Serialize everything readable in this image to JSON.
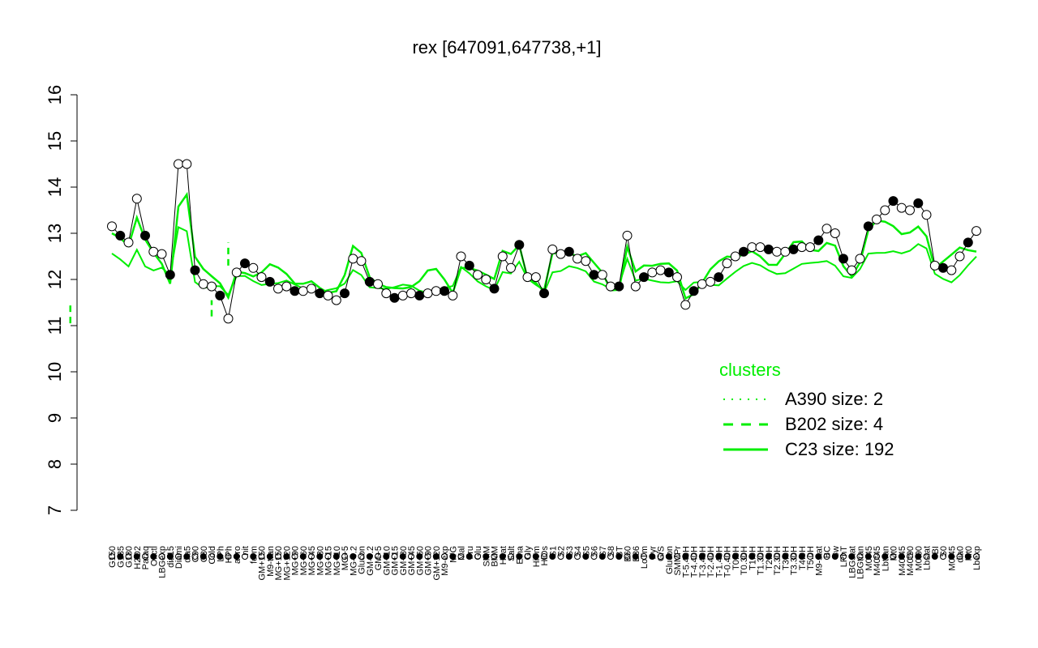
{
  "chart_data": {
    "type": "line",
    "title": "rex [647091,647738,+1]",
    "xlabel": "",
    "ylabel": "",
    "ylim": [
      7,
      16
    ],
    "yticks": [
      7,
      8,
      9,
      10,
      11,
      12,
      13,
      14,
      15,
      16
    ],
    "line_color": "#00ee00",
    "point_fill_colors": [
      "#ffffff",
      "#000000"
    ],
    "categories": [
      "G150",
      "G135",
      "G180",
      "H2O2",
      "Paraq",
      "Oxctl",
      "LBGexp",
      "dia15",
      "Diami",
      "dia5",
      "C90",
      "C30",
      "Cold",
      "LPh",
      "HPh",
      "aero",
      "nit",
      "ferm",
      "GM+150",
      "M9-tran",
      "MG+150",
      "MG+120",
      "MG+90",
      "MG+60",
      "MG+45",
      "MG+30",
      "MG+15",
      "MG+10",
      "MG+5",
      "MG-0.2",
      "Glucon",
      "GM-0.2",
      "GM+5",
      "GM+10",
      "GM+15",
      "GM+30",
      "GM+45",
      "GM+60",
      "GM+90",
      "GM+120",
      "M9-exp",
      "M/G",
      "Mal",
      "Fru",
      "Glu",
      "SMM",
      "BMM",
      "Heat",
      "Salt",
      "Etha",
      "Gly",
      "HiTm",
      "HiOs",
      "S1",
      "S2",
      "S3",
      "S4",
      "S5",
      "S6",
      "S7",
      "S8",
      "BT",
      "B60",
      "B36",
      "LoTm",
      "Pyr",
      "G/S",
      "Glucon",
      "SMMPr",
      "T-5.40H",
      "T-4.40H",
      "T-3.40H",
      "T-2.40H",
      "T-1.40H",
      "T-0.40H",
      "T0.0H",
      "T0.30H",
      "T1.0H",
      "T1.30H",
      "T2.0H",
      "T2.30H",
      "T3.0H",
      "T3.30H",
      "T4.0H",
      "T5.0H",
      "M9-stat",
      "BC",
      "Sw",
      "LPhT",
      "LBGstat",
      "LBGtran",
      "M0t45",
      "M40t45",
      "Lbtran",
      "Mt0",
      "M40t45",
      "M40t90",
      "M0t90",
      "Lbstat",
      "BI",
      "S0",
      "M0t45",
      "dia0",
      "Mt0",
      "Lbexp"
    ],
    "x_tick_labels_shown": [
      "G150",
      "G135",
      "G180",
      "H2O2",
      "Paraq",
      "Oxctl",
      "LBGexp",
      "dia15",
      "Diami",
      "dia5",
      "C90",
      "C30",
      "Cold",
      "LPh",
      "HPh",
      "aero",
      "nit",
      "ferm",
      "GM+150",
      "M9-tran",
      "MG+150",
      "MG+120",
      "MG+90",
      "MG+60",
      "MG+45",
      "MG+30",
      "MG+15",
      "MG+10",
      "MG+5",
      "MG-0.2",
      "Glucon",
      "GM-0.2",
      "GM+5",
      "GM+10",
      "GM+15",
      "GM+30",
      "GM+45",
      "GM+60",
      "GM+90",
      "GM+120",
      "M9-exp",
      "M/G",
      "Mal",
      "Fru",
      "Glu",
      "SMM",
      "BMM",
      "Heat",
      "Salt",
      "Etha",
      "Gly",
      "HiTm",
      "HiOs",
      "S1",
      "S2",
      "S3",
      "S4",
      "S5",
      "S6",
      "S7",
      "S8",
      "BT",
      "B60",
      "B36",
      "LoTm",
      "Pyr",
      "G/S",
      "Glucon",
      "SMMPr",
      "T-5.40H",
      "T-4.40H",
      "T-3.40H",
      "T-2.40H",
      "T-1.40H",
      "T-0.40H",
      "T0.0H",
      "T0.30H",
      "T1.0H",
      "T1.30H",
      "T2.0H",
      "T2.30H",
      "T3.0H",
      "T3.30H",
      "T4.0H",
      "T5.0H",
      "M9-stat",
      "BC",
      "Sw",
      "LPhT",
      "LBGstat",
      "LBGtran",
      "M0t45",
      "M40t45",
      "Lbtran",
      "Mt0",
      "M40t45",
      "M40t90",
      "M0t90",
      "Lbstat",
      "BI",
      "S0",
      "M0t45",
      "dia0",
      "Mt0",
      "Lbexp"
    ],
    "series": [
      {
        "values": [
          13.15,
          12.95,
          12.8,
          13.75,
          12.95,
          12.6,
          12.55,
          12.1,
          14.5,
          14.5,
          12.2,
          11.9,
          11.85,
          11.65,
          11.15,
          12.15,
          12.35,
          12.25,
          12.05,
          11.95,
          11.8,
          11.85,
          11.75,
          11.75,
          11.8,
          11.7,
          11.65,
          11.55,
          11.7,
          12.45,
          12.4,
          11.95,
          11.9,
          11.7,
          11.6,
          11.65,
          11.7,
          11.65,
          11.7,
          11.75,
          11.75,
          11.65,
          12.5,
          12.3,
          12.1,
          12.0,
          11.8,
          12.5,
          12.25,
          12.75,
          12.05,
          12.05,
          11.7,
          12.65,
          12.55,
          12.6,
          12.45,
          12.4,
          12.1,
          12.1,
          11.85,
          11.85,
          12.95,
          11.85,
          12.05,
          12.15,
          12.2,
          12.15,
          12.05,
          11.45,
          11.75,
          11.9,
          11.95,
          12.05,
          12.35,
          12.5,
          12.6,
          12.7,
          12.7,
          12.65,
          12.6,
          12.6,
          12.65,
          12.7,
          12.7,
          12.85,
          13.1,
          13.0,
          12.45,
          12.2,
          12.45,
          13.15,
          13.3,
          13.5,
          13.7,
          13.55,
          13.5,
          13.65,
          13.4,
          12.3,
          12.25,
          12.2,
          12.5,
          12.8,
          13.05
        ]
      }
    ],
    "legend": {
      "title": "clusters",
      "placement": "right",
      "entries": [
        {
          "label": "A390 size: 2",
          "style": "dotted"
        },
        {
          "label": "B202 size: 4",
          "style": "dashed"
        },
        {
          "label": "C23 size: 192",
          "style": "solid"
        }
      ]
    },
    "grid": false
  }
}
